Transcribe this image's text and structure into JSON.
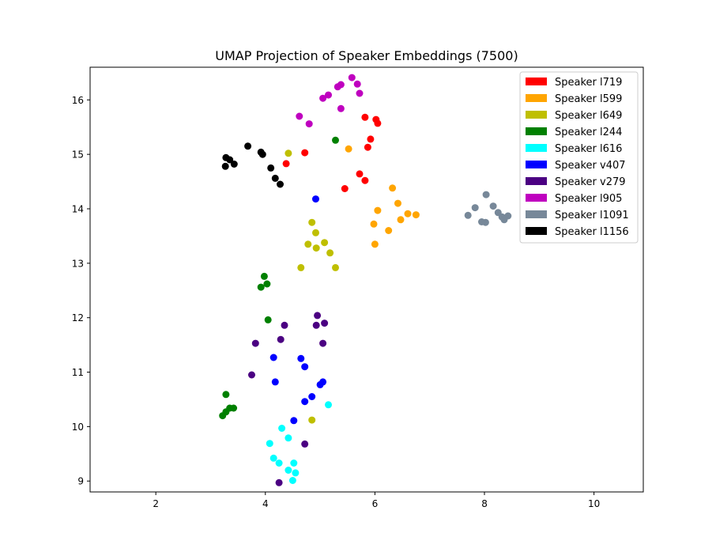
{
  "chart_data": {
    "type": "scatter",
    "title": "UMAP Projection of Speaker Embeddings (7500)",
    "xlabel": "",
    "ylabel": "",
    "xlim": [
      0.8,
      10.9
    ],
    "ylim": [
      8.8,
      16.6
    ],
    "xticks": [
      2,
      4,
      6,
      8,
      10
    ],
    "yticks": [
      9,
      10,
      11,
      12,
      13,
      14,
      15,
      16
    ],
    "grid": false,
    "legend_position": "top-right",
    "series": [
      {
        "name": "Speaker l719",
        "color": "#ff0000",
        "points": [
          [
            4.72,
            15.03
          ],
          [
            4.38,
            14.83
          ],
          [
            5.82,
            15.68
          ],
          [
            6.02,
            15.64
          ],
          [
            6.05,
            15.57
          ],
          [
            5.92,
            15.28
          ],
          [
            5.87,
            15.13
          ],
          [
            5.72,
            14.64
          ],
          [
            5.82,
            14.52
          ],
          [
            5.45,
            14.37
          ]
        ]
      },
      {
        "name": "Speaker l599",
        "color": "#ffa500",
        "points": [
          [
            5.52,
            15.1
          ],
          [
            6.32,
            14.38
          ],
          [
            6.42,
            14.1
          ],
          [
            6.05,
            13.97
          ],
          [
            6.6,
            13.91
          ],
          [
            6.75,
            13.89
          ],
          [
            6.47,
            13.8
          ],
          [
            5.98,
            13.72
          ],
          [
            6.25,
            13.6
          ],
          [
            6.0,
            13.35
          ]
        ]
      },
      {
        "name": "Speaker l649",
        "color": "#bfbf00",
        "points": [
          [
            4.42,
            15.02
          ],
          [
            4.85,
            13.75
          ],
          [
            4.92,
            13.56
          ],
          [
            4.78,
            13.35
          ],
          [
            5.08,
            13.38
          ],
          [
            4.93,
            13.28
          ],
          [
            5.18,
            13.19
          ],
          [
            4.65,
            12.92
          ],
          [
            5.28,
            12.92
          ],
          [
            4.85,
            10.12
          ]
        ]
      },
      {
        "name": "Speaker l244",
        "color": "#008000",
        "points": [
          [
            5.28,
            15.26
          ],
          [
            3.98,
            12.76
          ],
          [
            4.03,
            12.62
          ],
          [
            3.92,
            12.56
          ],
          [
            4.05,
            11.96
          ],
          [
            3.28,
            10.59
          ],
          [
            3.35,
            10.34
          ],
          [
            3.42,
            10.34
          ],
          [
            3.28,
            10.27
          ],
          [
            3.22,
            10.2
          ]
        ]
      },
      {
        "name": "Speaker l616",
        "color": "#00ffff",
        "points": [
          [
            5.15,
            10.4
          ],
          [
            4.3,
            9.97
          ],
          [
            4.42,
            9.79
          ],
          [
            4.08,
            9.69
          ],
          [
            4.15,
            9.42
          ],
          [
            4.25,
            9.33
          ],
          [
            4.52,
            9.33
          ],
          [
            4.42,
            9.2
          ],
          [
            4.55,
            9.15
          ],
          [
            4.5,
            9.01
          ]
        ]
      },
      {
        "name": "Speaker v407",
        "color": "#0000ff",
        "points": [
          [
            4.92,
            14.18
          ],
          [
            4.15,
            11.27
          ],
          [
            4.65,
            11.25
          ],
          [
            4.72,
            11.1
          ],
          [
            4.18,
            10.82
          ],
          [
            5.05,
            10.82
          ],
          [
            5.0,
            10.77
          ],
          [
            4.85,
            10.55
          ],
          [
            4.72,
            10.46
          ],
          [
            4.52,
            10.11
          ]
        ]
      },
      {
        "name": "Speaker v279",
        "color": "#4b0082",
        "points": [
          [
            4.95,
            12.04
          ],
          [
            4.35,
            11.86
          ],
          [
            5.08,
            11.9
          ],
          [
            4.93,
            11.86
          ],
          [
            4.28,
            11.6
          ],
          [
            3.82,
            11.53
          ],
          [
            5.05,
            11.53
          ],
          [
            3.75,
            10.95
          ],
          [
            4.72,
            9.68
          ],
          [
            4.25,
            8.97
          ]
        ]
      },
      {
        "name": "Speaker l905",
        "color": "#bf00bf",
        "points": [
          [
            5.58,
            16.41
          ],
          [
            5.38,
            16.28
          ],
          [
            5.68,
            16.29
          ],
          [
            5.32,
            16.24
          ],
          [
            5.72,
            16.12
          ],
          [
            5.15,
            16.09
          ],
          [
            5.05,
            16.03
          ],
          [
            5.38,
            15.84
          ],
          [
            4.62,
            15.7
          ],
          [
            4.8,
            15.56
          ]
        ]
      },
      {
        "name": "Speaker l1091",
        "color": "#778899",
        "points": [
          [
            8.03,
            14.26
          ],
          [
            8.16,
            14.05
          ],
          [
            7.83,
            14.02
          ],
          [
            8.25,
            13.93
          ],
          [
            7.7,
            13.88
          ],
          [
            8.43,
            13.87
          ],
          [
            8.32,
            13.85
          ],
          [
            8.36,
            13.8
          ],
          [
            7.95,
            13.76
          ],
          [
            8.02,
            13.75
          ]
        ]
      },
      {
        "name": "Speaker l1156",
        "color": "#000000",
        "points": [
          [
            3.68,
            15.15
          ],
          [
            3.92,
            15.04
          ],
          [
            3.95,
            15.0
          ],
          [
            3.28,
            14.94
          ],
          [
            3.35,
            14.9
          ],
          [
            3.43,
            14.82
          ],
          [
            3.27,
            14.78
          ],
          [
            4.1,
            14.75
          ],
          [
            4.18,
            14.56
          ],
          [
            4.27,
            14.45
          ]
        ]
      }
    ]
  }
}
